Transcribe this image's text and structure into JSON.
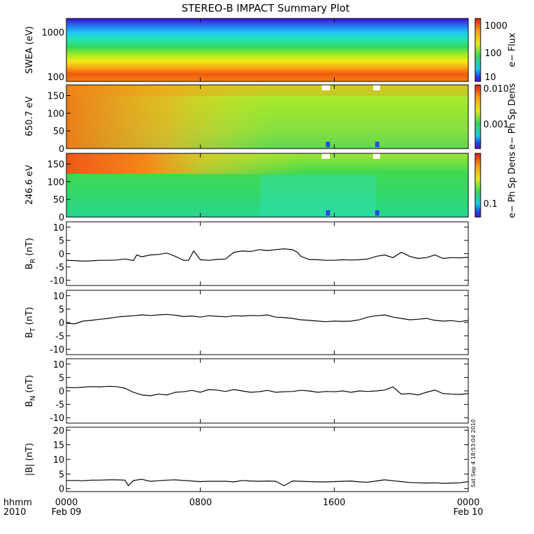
{
  "title": "STEREO-B IMPACT Summary Plot",
  "stamp": "Sat Sep  4 18:53:04 2010",
  "x_axis": {
    "row1_labels": [
      "hhmm",
      "0000",
      "0800",
      "1600",
      "0000"
    ],
    "row2_labels": [
      "2010",
      "Feb 09",
      "",
      "",
      "Feb 10"
    ]
  },
  "chart_data": [
    {
      "type": "heatmap",
      "ylabel": "SWEA (eV)",
      "ylog": true,
      "yticks": [
        "1000",
        "100"
      ],
      "colorbar": {
        "label": "e− Flux",
        "ticks": [
          "1000",
          "100",
          "10"
        ]
      }
    },
    {
      "type": "heatmap",
      "ylabel": "650.7 eV",
      "yticks": [
        "150",
        "100",
        "50",
        "0"
      ],
      "ylim": [
        0,
        180
      ],
      "colorbar": {
        "label": "e− Ph Sp Dens",
        "ticks": [
          "0.010",
          "0.001"
        ]
      }
    },
    {
      "type": "heatmap",
      "ylabel": "246.6 eV",
      "yticks": [
        "150",
        "100",
        "50",
        "0"
      ],
      "ylim": [
        0,
        180
      ],
      "colorbar": {
        "label": "e− Ph Sp Dens",
        "ticks": [
          "0.1"
        ]
      }
    },
    {
      "type": "line",
      "ylabel": "B",
      "ysub": "R",
      "yunit": "(nT)",
      "ylim": [
        -12,
        12
      ],
      "yticks": [
        "10",
        "5",
        "0",
        "-5",
        "-10"
      ],
      "x": [
        0,
        0.5,
        1,
        1.5,
        2,
        2.5,
        3,
        3.5,
        4,
        4.2,
        4.5,
        5,
        5.5,
        6,
        6.5,
        7,
        7.3,
        7.6,
        8,
        8.5,
        9,
        9.5,
        10,
        10.5,
        11,
        11.5,
        12,
        12.5,
        13,
        13.5,
        13.8,
        14,
        14.5,
        15,
        15.5,
        16,
        16.5,
        17,
        17.5,
        18,
        18.5,
        19,
        19.5,
        20,
        20.5,
        21,
        21.5,
        22,
        22.5,
        23,
        23.5,
        24
      ],
      "values": [
        -2.5,
        -2.6,
        -2.8,
        -2.7,
        -2.5,
        -2.5,
        -2.4,
        -2.0,
        -2.6,
        -0.5,
        -1.2,
        -0.5,
        -0.3,
        0.2,
        -1.0,
        -2.5,
        -2.5,
        1.0,
        -2.3,
        -2.5,
        -2.2,
        -2.0,
        0.5,
        1.0,
        0.8,
        1.5,
        1.2,
        1.5,
        1.8,
        1.5,
        0.5,
        -1.0,
        -2.2,
        -2.3,
        -2.5,
        -2.5,
        -2.3,
        -2.4,
        -2.3,
        -2.0,
        -1.0,
        -0.5,
        -1.5,
        0.5,
        -1.0,
        -1.8,
        -1.5,
        -0.5,
        -1.8,
        -1.5,
        -1.6,
        -1.4
      ]
    },
    {
      "type": "line",
      "ylabel": "B",
      "ysub": "T",
      "yunit": "(nT)",
      "ylim": [
        -12,
        12
      ],
      "yticks": [
        "10",
        "5",
        "0",
        "-5",
        "-10"
      ],
      "x": [
        0,
        0.5,
        1,
        1.5,
        2,
        2.5,
        3,
        3.5,
        4,
        4.5,
        5,
        5.5,
        6,
        6.5,
        7,
        7.5,
        8,
        8.5,
        9,
        9.5,
        10,
        10.5,
        11,
        11.5,
        12,
        12.5,
        13,
        13.5,
        14,
        14.5,
        15,
        15.5,
        16,
        16.5,
        17,
        17.5,
        18,
        18.5,
        19,
        19.5,
        20,
        20.5,
        21,
        21.5,
        22,
        22.5,
        23,
        23.5,
        24
      ],
      "values": [
        -0.3,
        -0.5,
        0.5,
        0.8,
        1.2,
        1.5,
        2.0,
        2.3,
        2.5,
        2.8,
        2.6,
        2.8,
        3.0,
        2.7,
        2.2,
        2.4,
        2.0,
        2.5,
        2.3,
        2.1,
        2.5,
        2.4,
        2.6,
        2.5,
        2.8,
        2.0,
        1.8,
        1.5,
        1.0,
        0.8,
        0.5,
        0.3,
        0.5,
        0.4,
        0.5,
        1.0,
        2.0,
        2.5,
        2.8,
        2.0,
        1.5,
        1.0,
        1.2,
        1.5,
        0.8,
        0.5,
        0.7,
        0.3,
        0.8
      ]
    },
    {
      "type": "line",
      "ylabel": "B",
      "ysub": "N",
      "yunit": "(nT)",
      "ylim": [
        -12,
        12
      ],
      "yticks": [
        "10",
        "5",
        "0",
        "-5",
        "-10"
      ],
      "x": [
        0,
        0.5,
        1,
        1.5,
        2,
        2.5,
        3,
        3.5,
        4,
        4.5,
        5,
        5.5,
        6,
        6.5,
        7,
        7.5,
        8,
        8.5,
        9,
        9.5,
        10,
        10.5,
        11,
        11.5,
        12,
        12.5,
        13,
        13.5,
        14,
        14.5,
        15,
        15.5,
        16,
        16.5,
        17,
        17.5,
        18,
        18.5,
        19,
        19.5,
        20,
        20.5,
        21,
        21.5,
        22,
        22.5,
        23,
        23.5,
        24
      ],
      "values": [
        1.3,
        1.2,
        1.4,
        1.6,
        1.5,
        1.7,
        1.6,
        1.0,
        -0.5,
        -1.5,
        -1.8,
        -1.2,
        -1.5,
        -0.5,
        -0.3,
        0.2,
        -0.5,
        0.5,
        0.3,
        -0.2,
        0.5,
        0.0,
        -0.5,
        -0.3,
        0.2,
        -0.5,
        -0.3,
        -0.2,
        0.2,
        0.0,
        -0.5,
        -0.2,
        -0.3,
        0.0,
        -0.5,
        0.0,
        -0.2,
        0.0,
        0.3,
        1.5,
        -1.2,
        -1.0,
        -1.5,
        -0.5,
        0.3,
        -1.0,
        -1.2,
        -1.3,
        -1.0
      ]
    },
    {
      "type": "line",
      "ylabel": "|B| (nT)",
      "ylim": [
        -1,
        21
      ],
      "yticks": [
        "20",
        "15",
        "10",
        "5",
        "0"
      ],
      "x": [
        0,
        0.5,
        1,
        1.5,
        2,
        2.5,
        3,
        3.5,
        3.7,
        4,
        4.5,
        5,
        5.5,
        6,
        6.5,
        7,
        7.5,
        8,
        8.5,
        9,
        9.5,
        10,
        10.5,
        11,
        11.5,
        12,
        12.5,
        13,
        13.5,
        14,
        14.5,
        15,
        15.5,
        16,
        16.5,
        17,
        17.5,
        18,
        18.5,
        19,
        19.5,
        20,
        20.5,
        21,
        21.5,
        22,
        22.5,
        23,
        23.5,
        24
      ],
      "values": [
        2.8,
        2.8,
        2.7,
        2.9,
        2.9,
        3.0,
        3.0,
        2.9,
        1.0,
        2.8,
        3.2,
        2.5,
        2.7,
        2.9,
        3.0,
        2.8,
        2.6,
        2.4,
        2.5,
        2.5,
        2.5,
        2.3,
        2.8,
        2.6,
        2.5,
        2.6,
        2.5,
        1.0,
        2.6,
        2.5,
        2.4,
        2.3,
        2.3,
        2.4,
        2.5,
        2.6,
        2.3,
        2.2,
        2.6,
        3.0,
        2.7,
        2.4,
        2.1,
        2.0,
        1.9,
        2.0,
        1.8,
        1.9,
        2.0,
        2.4
      ]
    }
  ]
}
